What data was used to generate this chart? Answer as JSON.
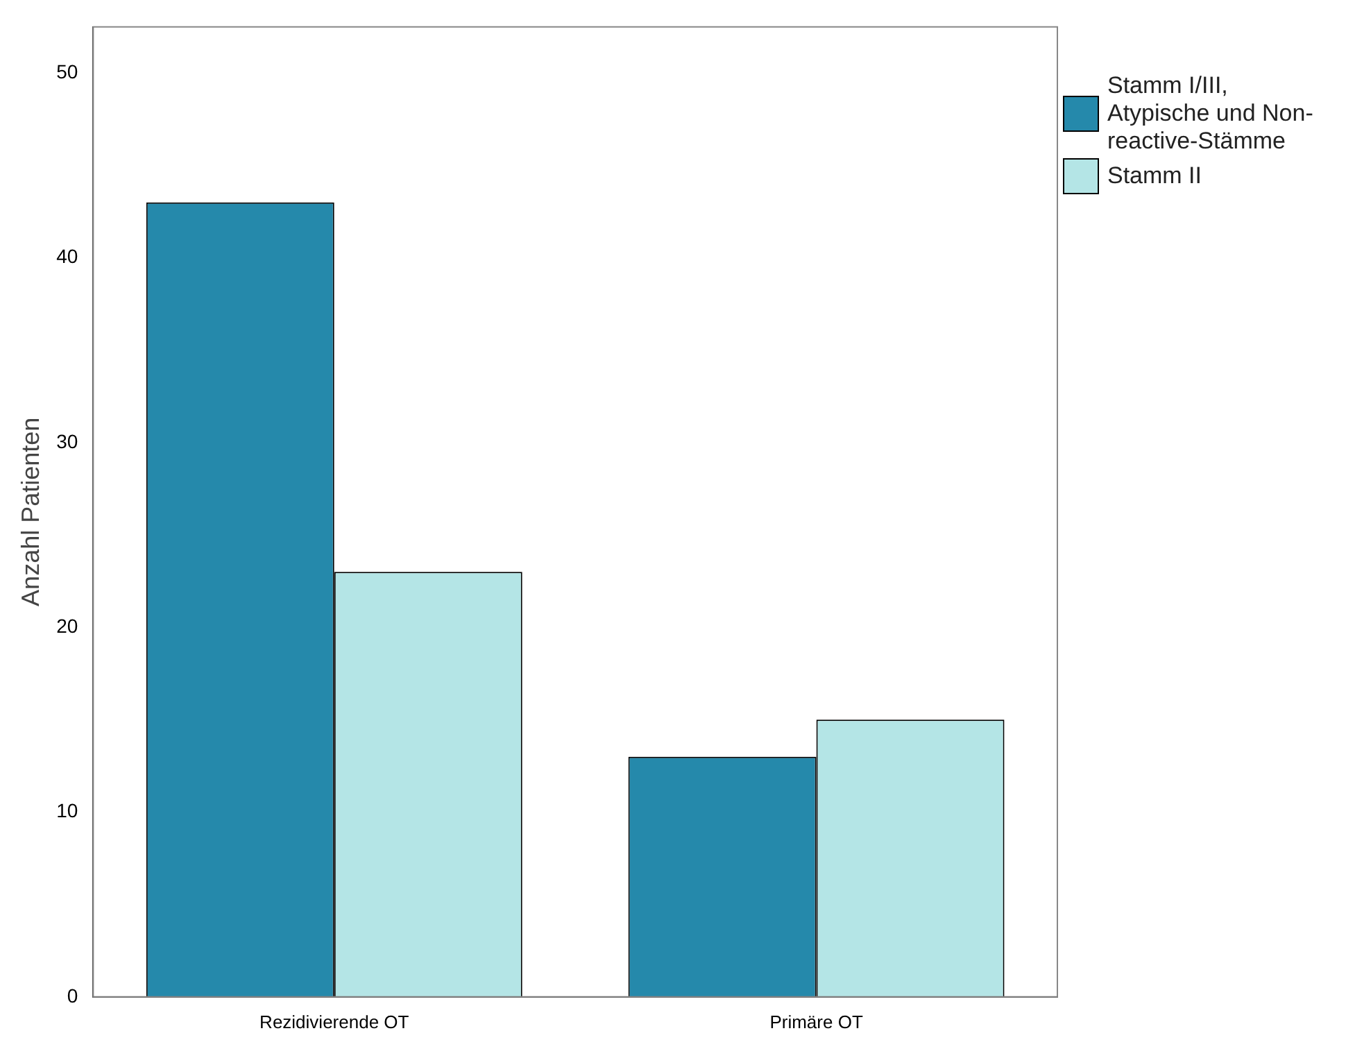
{
  "chart_data": {
    "type": "bar",
    "ylabel": "Anzahl Patienten",
    "categories": [
      "Rezidivierende OT",
      "Primäre OT"
    ],
    "series": [
      {
        "name": "Stamm I/III, Atypische und Non-reactive-Stämme",
        "color": "#2589ab",
        "values": [
          43,
          13
        ]
      },
      {
        "name": "Stamm II",
        "color": "#b4e5e6",
        "values": [
          23,
          15
        ]
      }
    ],
    "ylim": [
      0,
      52.5
    ],
    "yticks": [
      0,
      10,
      20,
      30,
      40,
      50
    ],
    "grid": false,
    "legend": "right"
  }
}
